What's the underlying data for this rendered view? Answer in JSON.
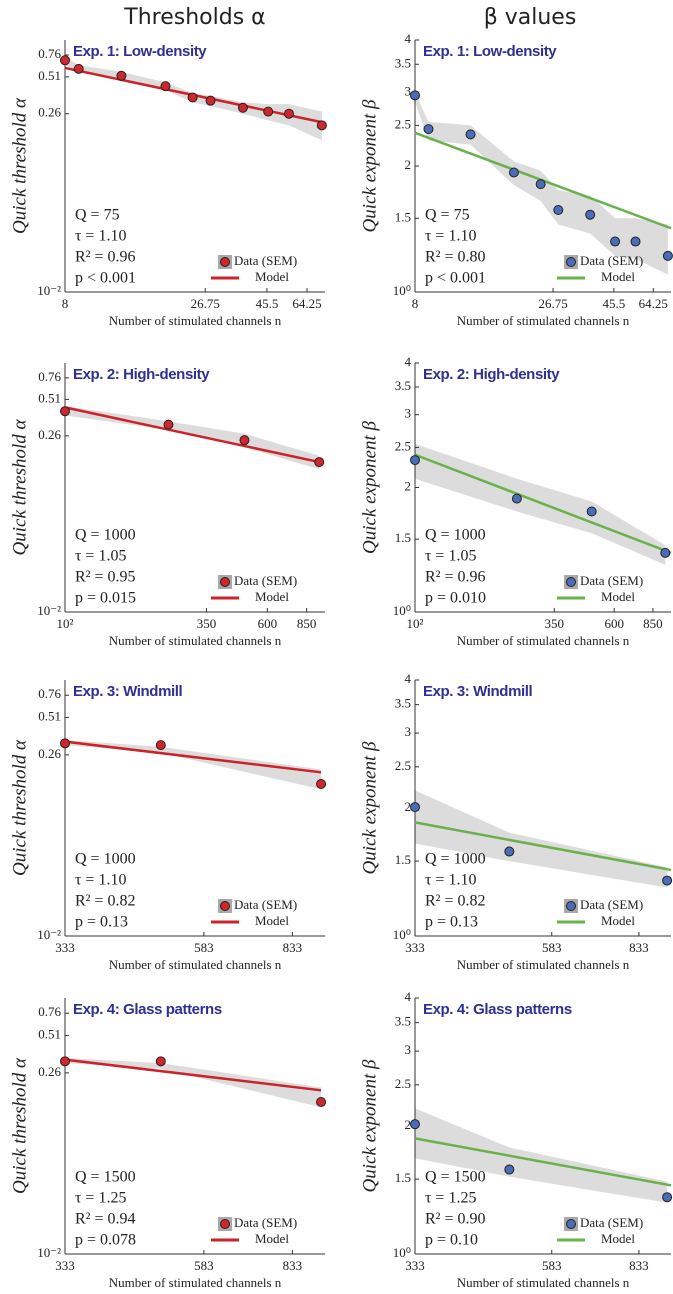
{
  "column_titles": [
    "Thresholds α",
    "β values"
  ],
  "chart_data": [
    {
      "type": "line",
      "title": "Exp. 1: Low-density",
      "x_label": "Number of stimulated channels n",
      "y_label": "Quick threshold α",
      "xscale": "log",
      "yscale": "log",
      "xlim": [
        8,
        75
      ],
      "ylim": [
        0.01,
        1
      ],
      "xticks": [
        8,
        26.75,
        45.5,
        64.25
      ],
      "yticks": [
        {
          "value": 0.01,
          "label": "10⁻²"
        },
        0.26,
        0.51,
        0.76
      ],
      "stats": [
        "Q = 75",
        "τ = 1.10",
        "R² = 0.96",
        "p < 0.001"
      ],
      "legend": "bottom-right",
      "series": [
        {
          "name": "Data (SEM)",
          "style": "points",
          "color": "#d0262d",
          "band_color": "#dcdcdc",
          "x": [
            8,
            9,
            13,
            19,
            24,
            28,
            37,
            46,
            55,
            73
          ],
          "values": [
            0.69,
            0.59,
            0.52,
            0.43,
            0.35,
            0.33,
            0.29,
            0.27,
            0.26,
            0.21
          ],
          "lower": [
            0.63,
            0.55,
            0.48,
            0.4,
            0.32,
            0.3,
            0.26,
            0.23,
            0.21,
            0.16
          ],
          "upper": [
            0.74,
            0.63,
            0.56,
            0.46,
            0.38,
            0.36,
            0.32,
            0.31,
            0.31,
            0.27
          ]
        },
        {
          "name": "Model",
          "style": "line",
          "color": "#cc2229",
          "x": [
            8,
            75
          ],
          "values": [
            0.6,
            0.22
          ]
        }
      ]
    },
    {
      "type": "line",
      "title": "Exp. 1: Low-density",
      "x_label": "Number of stimulated channels n",
      "y_label": "Quick exponent β",
      "xscale": "log",
      "yscale": "log",
      "xlim": [
        8,
        75
      ],
      "ylim": [
        1,
        4
      ],
      "xticks": [
        8,
        26.75,
        45.5,
        64.25
      ],
      "yticks": [
        {
          "value": 1,
          "label": "10⁰"
        },
        1.5,
        2,
        2.5,
        3,
        3.5,
        4
      ],
      "stats": [
        "Q = 75",
        "τ = 1.10",
        "R² = 0.80",
        "p < 0.001"
      ],
      "legend": "bottom-right",
      "series": [
        {
          "name": "Data (SEM)",
          "style": "points",
          "color": "#4b6cb7",
          "band_color": "#dcdcdc",
          "x": [
            8,
            9,
            13,
            19,
            24,
            28,
            37,
            46,
            55,
            73
          ],
          "values": [
            2.95,
            2.45,
            2.38,
            1.93,
            1.81,
            1.57,
            1.53,
            1.32,
            1.32,
            1.22
          ],
          "lower": [
            2.85,
            2.3,
            2.25,
            1.8,
            1.65,
            1.45,
            1.38,
            1.22,
            1.2,
            1.1
          ],
          "upper": [
            3.0,
            2.55,
            2.5,
            2.05,
            1.95,
            1.75,
            1.7,
            1.5,
            1.5,
            1.45
          ]
        },
        {
          "name": "Model",
          "style": "line",
          "color": "#6ab04c",
          "x": [
            8,
            75
          ],
          "values": [
            2.4,
            1.42
          ]
        }
      ]
    },
    {
      "type": "line",
      "title": "Exp. 2: High-density",
      "x_label": "Number of stimulated channels n",
      "y_label": "Quick threshold α",
      "xscale": "log",
      "yscale": "log",
      "xlim": [
        100,
        1000
      ],
      "ylim": [
        0.01,
        1
      ],
      "xticks": [
        {
          "value": 100,
          "label": "10²"
        },
        350,
        600,
        850
      ],
      "yticks": [
        {
          "value": 0.01,
          "label": "10⁻²"
        },
        0.26,
        0.51,
        0.76
      ],
      "stats": [
        "Q = 1000",
        "τ = 1.05",
        "R² = 0.95",
        "p = 0.015"
      ],
      "legend": "bottom-right",
      "series": [
        {
          "name": "Data (SEM)",
          "style": "points",
          "color": "#d0262d",
          "band_color": "#dcdcdc",
          "x": [
            100,
            250,
            490,
            950
          ],
          "values": [
            0.41,
            0.32,
            0.24,
            0.16
          ],
          "lower": [
            0.38,
            0.29,
            0.21,
            0.14
          ],
          "upper": [
            0.45,
            0.34,
            0.27,
            0.18
          ]
        },
        {
          "name": "Model",
          "style": "line",
          "color": "#cc2229",
          "x": [
            100,
            950
          ],
          "values": [
            0.44,
            0.16
          ]
        }
      ]
    },
    {
      "type": "line",
      "title": "Exp. 2: High-density",
      "x_label": "Number of stimulated channels n",
      "y_label": "Quick exponent β",
      "xscale": "log",
      "yscale": "log",
      "xlim": [
        100,
        1000
      ],
      "ylim": [
        1,
        4
      ],
      "xticks": [
        {
          "value": 100,
          "label": "10²"
        },
        350,
        600,
        850
      ],
      "yticks": [
        {
          "value": 1,
          "label": "10⁰"
        },
        1.5,
        2,
        2.5,
        3,
        3.5,
        4
      ],
      "stats": [
        "Q = 1000",
        "τ = 1.05",
        "R² = 0.96",
        "p = 0.010"
      ],
      "legend": "bottom-right",
      "series": [
        {
          "name": "Data (SEM)",
          "style": "points",
          "color": "#4b6cb7",
          "band_color": "#dcdcdc",
          "x": [
            100,
            250,
            490,
            950
          ],
          "values": [
            2.33,
            1.88,
            1.75,
            1.39
          ],
          "lower": [
            2.1,
            1.75,
            1.55,
            1.3
          ],
          "upper": [
            2.55,
            2.1,
            1.85,
            1.45
          ]
        },
        {
          "name": "Model",
          "style": "line",
          "color": "#6ab04c",
          "x": [
            100,
            1000
          ],
          "values": [
            2.4,
            1.39
          ]
        }
      ]
    },
    {
      "type": "line",
      "title": "Exp. 3: Windmill",
      "x_label": "Number of stimulated channels n",
      "y_label": "Quick threshold α",
      "xscale": "log",
      "yscale": "log",
      "xlim": [
        333,
        950
      ],
      "ylim": [
        0.01,
        1
      ],
      "xticks": [
        333,
        583,
        833
      ],
      "yticks": [
        {
          "value": 0.01,
          "label": "10⁻²"
        },
        0.26,
        0.51,
        0.76
      ],
      "stats": [
        "Q = 1000",
        "τ = 1.10",
        "R² = 0.82",
        "p = 0.13"
      ],
      "legend": "bottom-right",
      "series": [
        {
          "name": "Data (SEM)",
          "style": "points",
          "color": "#d0262d",
          "band_color": "#dcdcdc",
          "x": [
            333,
            490,
            935
          ],
          "values": [
            0.32,
            0.31,
            0.154
          ],
          "lower": [
            0.31,
            0.27,
            0.14
          ],
          "upper": [
            0.34,
            0.3,
            0.2
          ]
        },
        {
          "name": "Model",
          "style": "line",
          "color": "#cc2229",
          "x": [
            333,
            935
          ],
          "values": [
            0.33,
            0.19
          ]
        }
      ]
    },
    {
      "type": "line",
      "title": "Exp. 3: Windmill",
      "x_label": "Number of stimulated channels n",
      "y_label": "Quick exponent β",
      "xscale": "log",
      "yscale": "log",
      "xlim": [
        333,
        950
      ],
      "ylim": [
        1,
        4
      ],
      "xticks": [
        333,
        583,
        833
      ],
      "yticks": [
        {
          "value": 1,
          "label": "10⁰"
        },
        1.5,
        2,
        2.5,
        3,
        3.5,
        4
      ],
      "stats": [
        "Q = 1000",
        "τ = 1.10",
        "R² = 0.82",
        "p = 0.13"
      ],
      "legend": "bottom-right",
      "series": [
        {
          "name": "Data (SEM)",
          "style": "points",
          "color": "#4b6cb7",
          "band_color": "#dcdcdc",
          "x": [
            333,
            490,
            935
          ],
          "values": [
            2.01,
            1.58,
            1.35
          ],
          "lower": [
            1.65,
            1.5,
            1.3
          ],
          "upper": [
            2.2,
            1.75,
            1.45
          ]
        },
        {
          "name": "Model",
          "style": "line",
          "color": "#6ab04c",
          "x": [
            333,
            950
          ],
          "values": [
            1.85,
            1.43
          ]
        }
      ]
    },
    {
      "type": "line",
      "title": "Exp. 4: Glass patterns",
      "x_label": "Number of stimulated channels n",
      "y_label": "Quick threshold α",
      "xscale": "log",
      "yscale": "log",
      "xlim": [
        333,
        950
      ],
      "ylim": [
        0.01,
        1
      ],
      "xticks": [
        333,
        583,
        833
      ],
      "yticks": [
        {
          "value": 0.01,
          "label": "10⁻²"
        },
        0.26,
        0.51,
        0.76
      ],
      "stats": [
        "Q = 1500",
        "τ = 1.25",
        "R² = 0.94",
        "p = 0.078"
      ],
      "legend": "bottom-right",
      "series": [
        {
          "name": "Data (SEM)",
          "style": "points",
          "color": "#d0262d",
          "band_color": "#dcdcdc",
          "x": [
            333,
            490,
            935
          ],
          "values": [
            0.32,
            0.32,
            0.154
          ],
          "lower": [
            0.31,
            0.28,
            0.14
          ],
          "upper": [
            0.34,
            0.31,
            0.2
          ]
        },
        {
          "name": "Model",
          "style": "line",
          "color": "#cc2229",
          "x": [
            333,
            935
          ],
          "values": [
            0.33,
            0.19
          ]
        }
      ]
    },
    {
      "type": "line",
      "title": "Exp. 4: Glass patterns",
      "x_label": "Number of stimulated channels n",
      "y_label": "Quick exponent β",
      "xscale": "log",
      "yscale": "log",
      "xlim": [
        333,
        950
      ],
      "ylim": [
        1,
        4
      ],
      "xticks": [
        333,
        583,
        833
      ],
      "yticks": [
        {
          "value": 1,
          "label": "10⁰"
        },
        1.5,
        2,
        2.5,
        3,
        3.5,
        4
      ],
      "stats": [
        "Q = 1500",
        "τ = 1.25",
        "R² = 0.90",
        "p = 0.10"
      ],
      "legend": "bottom-right",
      "series": [
        {
          "name": "Data (SEM)",
          "style": "points",
          "color": "#4b6cb7",
          "band_color": "#dcdcdc",
          "x": [
            333,
            490,
            935
          ],
          "values": [
            2.02,
            1.58,
            1.36
          ],
          "lower": [
            1.68,
            1.52,
            1.32
          ],
          "upper": [
            2.2,
            1.78,
            1.48
          ]
        },
        {
          "name": "Model",
          "style": "line",
          "color": "#6ab04c",
          "x": [
            333,
            950
          ],
          "values": [
            1.87,
            1.45
          ]
        }
      ]
    }
  ]
}
